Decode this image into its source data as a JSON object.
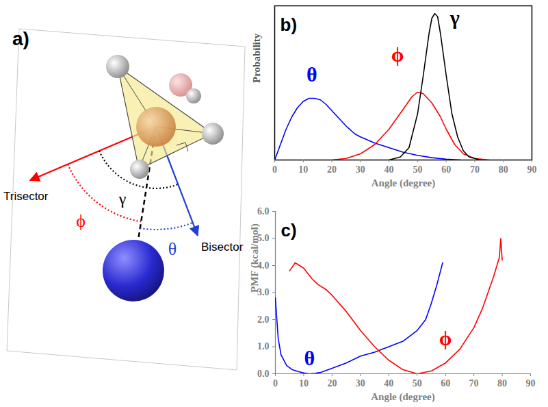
{
  "diagram": {
    "panel_label": "a)",
    "labels": {
      "trisector": "Trisector",
      "bisector": "Bisector",
      "gamma": "γ",
      "phi": "ϕ",
      "theta": "θ"
    }
  },
  "chart_data": [
    {
      "type": "line",
      "panel_label": "b)",
      "x_label": "Angle (degree)",
      "y_label": "Probability",
      "xlim": [
        0,
        90
      ],
      "xticks": [
        0,
        10,
        20,
        30,
        40,
        50,
        60,
        70,
        80,
        90
      ],
      "ylim": [
        0,
        1
      ],
      "tick_labels": "x",
      "series": [
        {
          "name": "θ",
          "color": "#0000ff",
          "label_position": [
            13,
            0.55
          ],
          "x": [
            0,
            2,
            4,
            6,
            8,
            10,
            12,
            14,
            16,
            18,
            20,
            22,
            25,
            28,
            30,
            35,
            40,
            45,
            50,
            55,
            60,
            65
          ],
          "values": [
            0,
            0.1,
            0.2,
            0.28,
            0.34,
            0.38,
            0.4,
            0.4,
            0.39,
            0.36,
            0.32,
            0.28,
            0.22,
            0.17,
            0.15,
            0.11,
            0.08,
            0.05,
            0.03,
            0.015,
            0.005,
            0
          ]
        },
        {
          "name": "ϕ",
          "color": "#ff0000",
          "label_position": [
            43,
            0.68
          ],
          "x": [
            20,
            25,
            30,
            35,
            40,
            45,
            48,
            50,
            52,
            55,
            58,
            60,
            63,
            66,
            70,
            75
          ],
          "values": [
            0,
            0.01,
            0.04,
            0.1,
            0.2,
            0.33,
            0.41,
            0.44,
            0.43,
            0.37,
            0.28,
            0.2,
            0.1,
            0.04,
            0.01,
            0
          ]
        },
        {
          "name": "γ",
          "color": "#000000",
          "label_position": [
            63,
            0.92
          ],
          "x": [
            40,
            44,
            47,
            50,
            52,
            54,
            55,
            56,
            57,
            58,
            60,
            62,
            64,
            66,
            68,
            72
          ],
          "values": [
            0,
            0.02,
            0.08,
            0.3,
            0.55,
            0.82,
            0.92,
            0.95,
            0.93,
            0.82,
            0.55,
            0.3,
            0.15,
            0.06,
            0.02,
            0
          ]
        }
      ]
    },
    {
      "type": "line",
      "panel_label": "c)",
      "x_label": "Angle (degree)",
      "y_label": "PMF (kcal/mol)",
      "xlim": [
        0,
        90
      ],
      "xticks": [
        0,
        10,
        20,
        30,
        40,
        50,
        60,
        70,
        80,
        90
      ],
      "ylim": [
        0,
        6
      ],
      "yticks": [
        0,
        1,
        2,
        3,
        4,
        5,
        6
      ],
      "series": [
        {
          "name": "θ",
          "color": "#0000ff",
          "label_position": [
            12,
            0.55
          ],
          "x": [
            0,
            1,
            2,
            4,
            6,
            8,
            10,
            12,
            14,
            16,
            20,
            25,
            30,
            35,
            40,
            45,
            50,
            53,
            55,
            57,
            59
          ],
          "values": [
            2.8,
            1.3,
            0.7,
            0.3,
            0.15,
            0.08,
            0.03,
            0,
            0.02,
            0.05,
            0.2,
            0.4,
            0.65,
            0.8,
            1.0,
            1.2,
            1.6,
            2.0,
            2.6,
            3.3,
            4.1
          ]
        },
        {
          "name": "ϕ",
          "color": "#ff0000",
          "label_position": [
            60,
            1.3
          ],
          "x": [
            5,
            7,
            10,
            13,
            15,
            18,
            20,
            25,
            30,
            35,
            40,
            45,
            50,
            55,
            60,
            65,
            70,
            73,
            75,
            77,
            79,
            79.5,
            80
          ],
          "values": [
            3.8,
            4.1,
            3.9,
            3.5,
            3.3,
            3.1,
            2.9,
            2.3,
            1.6,
            1.0,
            0.5,
            0.15,
            0,
            0.1,
            0.4,
            0.9,
            1.7,
            2.4,
            3.0,
            3.6,
            4.3,
            5.0,
            4.2
          ]
        }
      ]
    }
  ]
}
